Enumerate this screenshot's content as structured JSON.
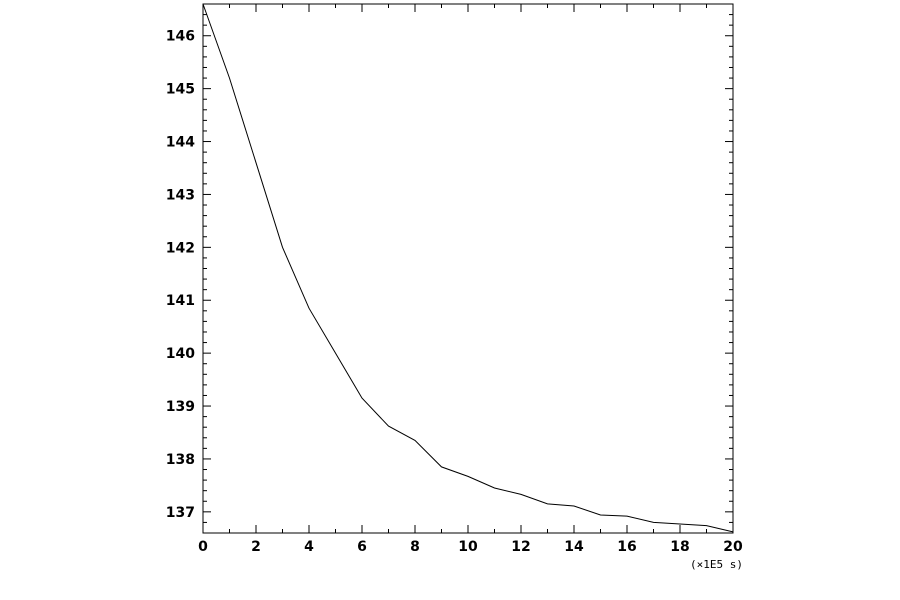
{
  "chart_data": {
    "type": "line",
    "title": "",
    "xlabel": "",
    "ylabel": "",
    "x_unit_label": "(×1E5 s)",
    "xlim": [
      0,
      20
    ],
    "ylim": [
      136.6,
      146.6
    ],
    "grid": false,
    "x_ticks": [
      0,
      2,
      4,
      6,
      8,
      10,
      12,
      14,
      16,
      18,
      20
    ],
    "x_tick_labels": [
      "0",
      "2",
      "4",
      "6",
      "8",
      "10",
      "12",
      "14",
      "16",
      "18",
      "20"
    ],
    "y_ticks": [
      137,
      138,
      139,
      140,
      141,
      142,
      143,
      144,
      145,
      146
    ],
    "y_tick_labels": [
      "137",
      "138",
      "139",
      "140",
      "141",
      "142",
      "143",
      "144",
      "145",
      "146"
    ],
    "series": [
      {
        "color": "#000000",
        "x": [
          0,
          1,
          2,
          3,
          4,
          5,
          6,
          7,
          8,
          9,
          10,
          11,
          12,
          13,
          14,
          15,
          16,
          17,
          18,
          19,
          20
        ],
        "y": [
          146.6,
          145.2,
          143.6,
          142.0,
          140.85,
          140.0,
          139.15,
          138.62,
          138.35,
          137.85,
          137.67,
          137.45,
          137.33,
          137.15,
          137.11,
          136.94,
          136.92,
          136.8,
          136.77,
          136.74,
          136.62
        ]
      }
    ]
  }
}
